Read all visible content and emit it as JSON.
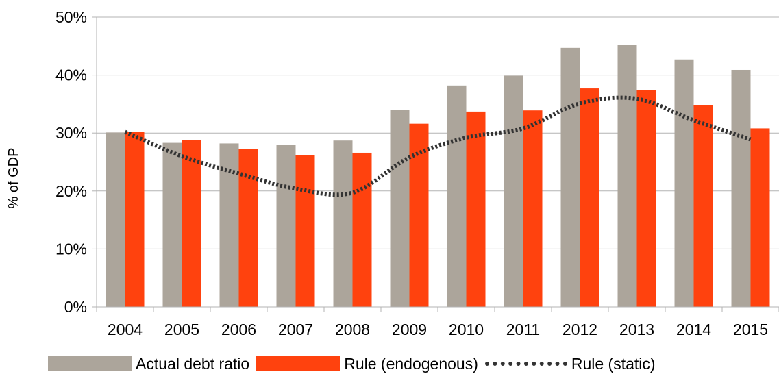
{
  "chart_data": {
    "type": "bar",
    "categories": [
      "2004",
      "2005",
      "2006",
      "2007",
      "2008",
      "2009",
      "2010",
      "2011",
      "2012",
      "2013",
      "2014",
      "2015"
    ],
    "ylabel": "% of GDP",
    "xlabel": "",
    "ylim": [
      0,
      0.5
    ],
    "yticks": [
      "0%",
      "10%",
      "20%",
      "30%",
      "40%",
      "50%"
    ],
    "grid": true,
    "legend_position": "bottom",
    "series": [
      {
        "name": "Actual debt ratio",
        "kind": "bar",
        "color": "#aca59b",
        "values": [
          0.301,
          0.283,
          0.282,
          0.28,
          0.287,
          0.34,
          0.382,
          0.399,
          0.447,
          0.452,
          0.427,
          0.409
        ]
      },
      {
        "name": "Rule (endogenous)",
        "kind": "bar",
        "color": "#ff420e",
        "values": [
          0.302,
          0.288,
          0.272,
          0.262,
          0.266,
          0.316,
          0.337,
          0.339,
          0.377,
          0.374,
          0.348,
          0.308
        ]
      },
      {
        "name": "Rule (static)",
        "kind": "line",
        "color": "#333333",
        "values": [
          0.302,
          0.26,
          0.23,
          0.204,
          0.197,
          0.258,
          0.292,
          0.308,
          0.351,
          0.359,
          0.322,
          0.289
        ]
      }
    ]
  }
}
